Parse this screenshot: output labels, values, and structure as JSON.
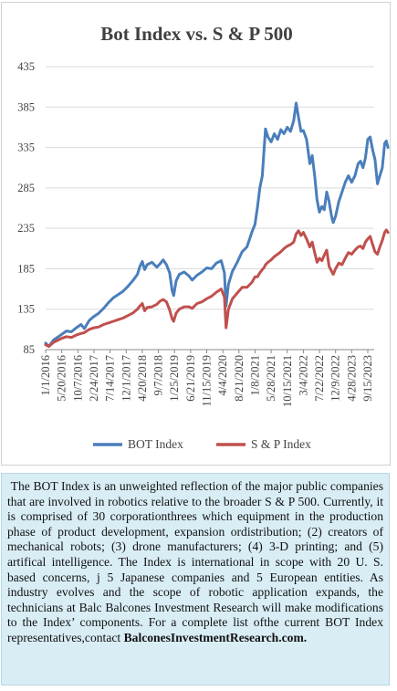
{
  "chart_data": {
    "type": "line",
    "title": "Bot Index vs. S & P 500",
    "y_ticks": [
      85,
      135,
      185,
      235,
      285,
      335,
      385,
      435
    ],
    "ylim": [
      85,
      435
    ],
    "x_tick_labels": [
      "1/1/2016",
      "5/20/2016",
      "10/7/2016",
      "2/24/2017",
      "7/14/2017",
      "12/1/2017",
      "4/20/2018",
      "9/7/2018",
      "1/25/2019",
      "6/21/2019",
      "11/15/2019",
      "4/4/2020",
      "8/21/2020",
      "1/8/2021",
      "5/28/2021",
      "10/15/2021",
      "3/4/2022",
      "7/22/2022",
      "12/9/2022",
      "4/28/2023",
      "9/15/2023"
    ],
    "legend_position": "bottom",
    "series": [
      {
        "name": "BOT Index",
        "color": "#4a7ebb",
        "values": [
          [
            0,
            93
          ],
          [
            0.2,
            89
          ],
          [
            0.5,
            97
          ],
          [
            0.8,
            101
          ],
          [
            1.0,
            104
          ],
          [
            1.3,
            108
          ],
          [
            1.6,
            107
          ],
          [
            1.9,
            112
          ],
          [
            2.2,
            116
          ],
          [
            2.4,
            111
          ],
          [
            2.7,
            121
          ],
          [
            3.0,
            126
          ],
          [
            3.3,
            130
          ],
          [
            3.6,
            136
          ],
          [
            3.9,
            143
          ],
          [
            4.2,
            149
          ],
          [
            4.5,
            153
          ],
          [
            4.8,
            157
          ],
          [
            5.1,
            163
          ],
          [
            5.4,
            170
          ],
          [
            5.7,
            178
          ],
          [
            5.85,
            188
          ],
          [
            6.0,
            194
          ],
          [
            6.15,
            184
          ],
          [
            6.3,
            190
          ],
          [
            6.6,
            193
          ],
          [
            6.9,
            187
          ],
          [
            7.1,
            191
          ],
          [
            7.3,
            196
          ],
          [
            7.5,
            190
          ],
          [
            7.7,
            180
          ],
          [
            7.85,
            158
          ],
          [
            7.95,
            152
          ],
          [
            8.1,
            170
          ],
          [
            8.3,
            178
          ],
          [
            8.6,
            181
          ],
          [
            8.9,
            176
          ],
          [
            9.1,
            171
          ],
          [
            9.4,
            177
          ],
          [
            9.7,
            181
          ],
          [
            10.0,
            186
          ],
          [
            10.3,
            185
          ],
          [
            10.6,
            192
          ],
          [
            10.9,
            195
          ],
          [
            11.1,
            180
          ],
          [
            11.2,
            139
          ],
          [
            11.35,
            166
          ],
          [
            11.6,
            182
          ],
          [
            11.9,
            193
          ],
          [
            12.2,
            206
          ],
          [
            12.5,
            212
          ],
          [
            12.8,
            230
          ],
          [
            13.0,
            240
          ],
          [
            13.15,
            261
          ],
          [
            13.3,
            285
          ],
          [
            13.45,
            300
          ],
          [
            13.55,
            330
          ],
          [
            13.65,
            358
          ],
          [
            13.8,
            348
          ],
          [
            14.0,
            342
          ],
          [
            14.2,
            352
          ],
          [
            14.4,
            345
          ],
          [
            14.6,
            357
          ],
          [
            14.8,
            352
          ],
          [
            15.0,
            360
          ],
          [
            15.2,
            355
          ],
          [
            15.4,
            368
          ],
          [
            15.55,
            390
          ],
          [
            15.7,
            372
          ],
          [
            15.85,
            355
          ],
          [
            16.0,
            356
          ],
          [
            16.2,
            345
          ],
          [
            16.4,
            315
          ],
          [
            16.55,
            325
          ],
          [
            16.7,
            300
          ],
          [
            16.85,
            270
          ],
          [
            17.0,
            255
          ],
          [
            17.15,
            262
          ],
          [
            17.3,
            258
          ],
          [
            17.45,
            280
          ],
          [
            17.6,
            268
          ],
          [
            17.75,
            250
          ],
          [
            17.85,
            242
          ],
          [
            18.0,
            250
          ],
          [
            18.2,
            268
          ],
          [
            18.4,
            280
          ],
          [
            18.6,
            292
          ],
          [
            18.8,
            300
          ],
          [
            19.0,
            292
          ],
          [
            19.2,
            300
          ],
          [
            19.4,
            315
          ],
          [
            19.55,
            318
          ],
          [
            19.7,
            310
          ],
          [
            19.85,
            322
          ],
          [
            20.0,
            345
          ],
          [
            20.15,
            348
          ],
          [
            20.3,
            332
          ],
          [
            20.45,
            320
          ],
          [
            20.6,
            290
          ],
          [
            20.75,
            300
          ],
          [
            20.9,
            310
          ],
          [
            21.05,
            340
          ],
          [
            21.15,
            343
          ],
          [
            21.25,
            335
          ]
        ]
      },
      {
        "name": "S & P Index",
        "color": "#c0504d",
        "values": [
          [
            0,
            91
          ],
          [
            0.2,
            89
          ],
          [
            0.5,
            94
          ],
          [
            0.8,
            97
          ],
          [
            1.0,
            99
          ],
          [
            1.3,
            101
          ],
          [
            1.6,
            100
          ],
          [
            1.9,
            103
          ],
          [
            2.2,
            105
          ],
          [
            2.4,
            106
          ],
          [
            2.7,
            110
          ],
          [
            3.0,
            112
          ],
          [
            3.3,
            113
          ],
          [
            3.6,
            116
          ],
          [
            3.9,
            118
          ],
          [
            4.2,
            120
          ],
          [
            4.5,
            122
          ],
          [
            4.8,
            124
          ],
          [
            5.1,
            127
          ],
          [
            5.4,
            130
          ],
          [
            5.7,
            135
          ],
          [
            5.85,
            139
          ],
          [
            6.0,
            142
          ],
          [
            6.15,
            133
          ],
          [
            6.3,
            137
          ],
          [
            6.6,
            138
          ],
          [
            6.9,
            141
          ],
          [
            7.1,
            145
          ],
          [
            7.3,
            147
          ],
          [
            7.5,
            144
          ],
          [
            7.7,
            134
          ],
          [
            7.85,
            123
          ],
          [
            7.95,
            120
          ],
          [
            8.1,
            130
          ],
          [
            8.3,
            135
          ],
          [
            8.6,
            138
          ],
          [
            8.9,
            138
          ],
          [
            9.1,
            136
          ],
          [
            9.4,
            142
          ],
          [
            9.7,
            144
          ],
          [
            10.0,
            148
          ],
          [
            10.3,
            151
          ],
          [
            10.6,
            156
          ],
          [
            10.9,
            160
          ],
          [
            11.1,
            150
          ],
          [
            11.2,
            112
          ],
          [
            11.35,
            135
          ],
          [
            11.6,
            148
          ],
          [
            11.9,
            155
          ],
          [
            12.2,
            162
          ],
          [
            12.5,
            162
          ],
          [
            12.8,
            168
          ],
          [
            13.0,
            175
          ],
          [
            13.15,
            175
          ],
          [
            13.3,
            180
          ],
          [
            13.45,
            184
          ],
          [
            13.55,
            186
          ],
          [
            13.65,
            190
          ],
          [
            13.8,
            193
          ],
          [
            14.0,
            196
          ],
          [
            14.2,
            200
          ],
          [
            14.4,
            203
          ],
          [
            14.6,
            206
          ],
          [
            14.8,
            210
          ],
          [
            15.0,
            213
          ],
          [
            15.2,
            215
          ],
          [
            15.4,
            218
          ],
          [
            15.55,
            228
          ],
          [
            15.7,
            232
          ],
          [
            15.85,
            226
          ],
          [
            16.0,
            230
          ],
          [
            16.2,
            222
          ],
          [
            16.4,
            212
          ],
          [
            16.55,
            218
          ],
          [
            16.7,
            205
          ],
          [
            16.85,
            193
          ],
          [
            17.0,
            198
          ],
          [
            17.15,
            195
          ],
          [
            17.3,
            202
          ],
          [
            17.45,
            208
          ],
          [
            17.6,
            188
          ],
          [
            17.75,
            182
          ],
          [
            17.85,
            178
          ],
          [
            18.0,
            185
          ],
          [
            18.2,
            192
          ],
          [
            18.4,
            190
          ],
          [
            18.6,
            198
          ],
          [
            18.8,
            205
          ],
          [
            19.0,
            203
          ],
          [
            19.2,
            208
          ],
          [
            19.4,
            212
          ],
          [
            19.55,
            213
          ],
          [
            19.7,
            210
          ],
          [
            19.85,
            218
          ],
          [
            20.0,
            222
          ],
          [
            20.15,
            225
          ],
          [
            20.3,
            215
          ],
          [
            20.45,
            206
          ],
          [
            20.6,
            203
          ],
          [
            20.75,
            212
          ],
          [
            20.9,
            220
          ],
          [
            21.05,
            230
          ],
          [
            21.15,
            233
          ],
          [
            21.25,
            230
          ]
        ]
      }
    ]
  },
  "description": {
    "text": "The BOT Index is an unweighted reflection of the major public companies that are involved in robotics relative to the broader S & P 500. Currently, it is comprised of 30 corporationthrees which equipment in the production phase of product development, expansion ordistribution; (2) creators of mechanical robots; (3) drone manufacturers; (4) 3-D printing; and (5) artifical intelligence. The Index is international in scope with 20 U. S. based concerns, j 5 Japanese companies and 5 European entities. As industry evolves and the scope of robotic application expands, the technicians at Balc Balcones Investment Research will make modifications to the Index’ components. For a  complete list ofthe current BOT Index representatives,contact ",
    "link": "BalconesInvestmentResearch.com."
  }
}
